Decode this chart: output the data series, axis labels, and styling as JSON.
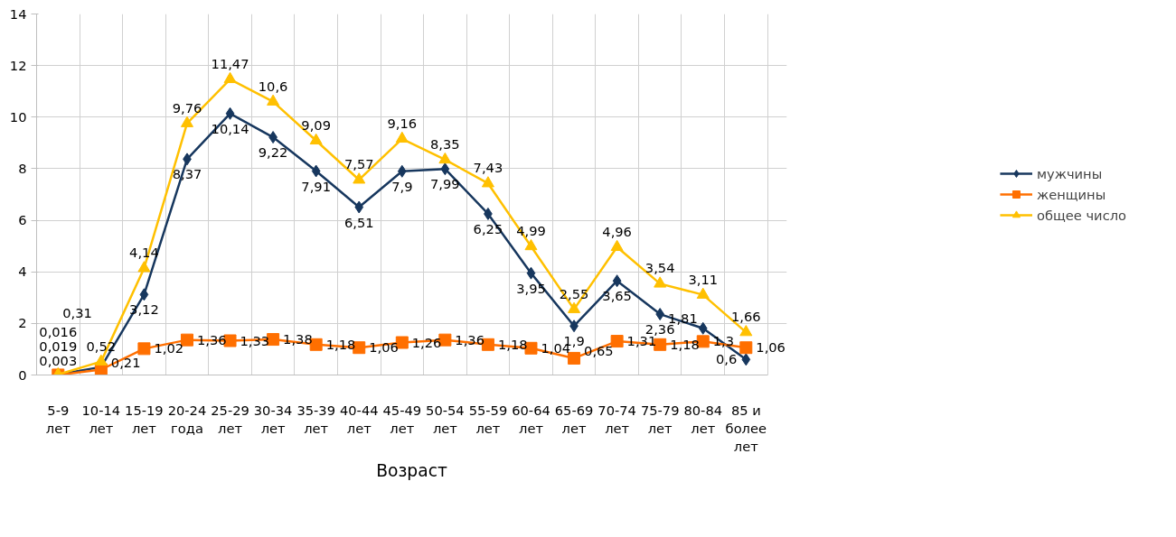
{
  "chart_data": {
    "type": "line",
    "xlabel": "Возраст",
    "categories": [
      "5-9 лет",
      "10-14 лет",
      "15-19 лет",
      "20-24 года",
      "25-29 лет",
      "30-34 лет",
      "35-39 лет",
      "40-44 лет",
      "45-49 лет",
      "50-54 лет",
      "55-59 лет",
      "60-64 лет",
      "65-69 лет",
      "70-74 лет",
      "75-79 лет",
      "80-84 лет",
      "85 и более лет"
    ],
    "series": [
      {
        "name": "мужчины",
        "color": "#17375e",
        "marker": "diamond",
        "values": [
          0.016,
          0.31,
          3.12,
          8.37,
          10.14,
          9.22,
          7.91,
          6.51,
          7.9,
          7.99,
          6.25,
          3.95,
          1.9,
          3.65,
          2.36,
          1.81,
          0.6
        ],
        "value_labels": [
          "0,016",
          "0,31",
          "3,12",
          "8,37",
          "10,14",
          "9,22",
          "7,91",
          "6,51",
          "7,9",
          "7,99",
          "6,25",
          "3,95",
          "1,9",
          "3,65",
          "2,36",
          "1,81",
          "0,6"
        ]
      },
      {
        "name": "женщины",
        "color": "#ff6f00",
        "marker": "square",
        "values": [
          0.003,
          0.21,
          1.02,
          1.36,
          1.33,
          1.38,
          1.18,
          1.06,
          1.26,
          1.36,
          1.18,
          1.04,
          0.65,
          1.31,
          1.18,
          1.3,
          1.06
        ],
        "value_labels": [
          "0,003",
          "0,21",
          "1,02",
          "1,36",
          "1,33",
          "1,38",
          "1,18",
          "1,06",
          "1,26",
          "1,36",
          "1,18",
          "1,04",
          "0,65",
          "1,31",
          "1,18",
          "1,3",
          "1,06"
        ]
      },
      {
        "name": "общее число",
        "color": "#ffc000",
        "marker": "triangle",
        "values": [
          0.019,
          0.52,
          4.14,
          9.76,
          11.47,
          10.6,
          9.09,
          7.57,
          9.16,
          8.35,
          7.43,
          4.99,
          2.55,
          4.96,
          3.54,
          3.11,
          1.66
        ],
        "value_labels": [
          "0,019",
          "0,52",
          "4,14",
          "9,76",
          "11,47",
          "10,6",
          "9,09",
          "7,57",
          "9,16",
          "8,35",
          "7,43",
          "4,99",
          "2,55",
          "4,96",
          "3,54",
          "3,11",
          "1,66"
        ]
      }
    ],
    "ylim": [
      0,
      14
    ],
    "yticks": [
      0,
      2,
      4,
      6,
      8,
      10,
      12,
      14
    ],
    "grid": true,
    "legend": "right",
    "line_style": "solid",
    "data_labels": true
  }
}
